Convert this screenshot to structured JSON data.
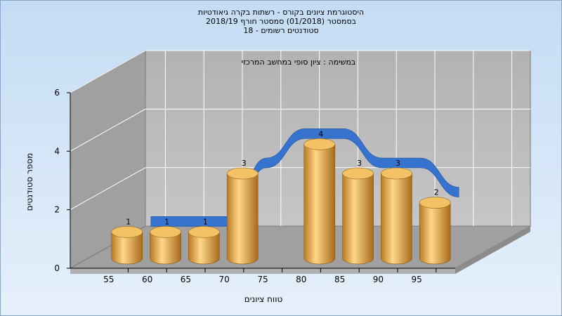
{
  "header": {
    "title_lines": [
      "היסטוגרמת ציונים בקורס - רשתות בקרה גיאודטיות",
      "בסמסטר  (01/2018)  סמסטר חורף 2018/19",
      "סטודנטים רשומים - 18"
    ]
  },
  "chart_data": {
    "type": "bar",
    "title": "במשימה : ציון סופי במחשב המרכזי",
    "xlabel": "טווח ציונים",
    "ylabel": "מספר סטודנטים",
    "categories": [
      "55",
      "60",
      "65",
      "70",
      "75",
      "80",
      "85",
      "90",
      "95"
    ],
    "ylim": [
      0,
      6
    ],
    "yticks": [
      0,
      2,
      4,
      6
    ],
    "grid": true,
    "series": [
      {
        "kind": "cylinder",
        "values": [
          1,
          1,
          1,
          3,
          null,
          4,
          3,
          3,
          2
        ],
        "labels": [
          "1",
          "1",
          "1",
          "3",
          "",
          "4",
          "3",
          "3",
          "2"
        ],
        "color": "#e0a040"
      },
      {
        "kind": "ribbon",
        "values": [
          1,
          1,
          1,
          3,
          4,
          4,
          3,
          3,
          2
        ],
        "color": "#2f6fd0"
      }
    ]
  },
  "colors": {
    "wall": "#b8b8b8",
    "side_wall": "#a0a0a0",
    "floor": "#a0a0a0",
    "grid": "#ffffff",
    "bar": "#e0a040",
    "ribbon": "#2f6fd0"
  }
}
